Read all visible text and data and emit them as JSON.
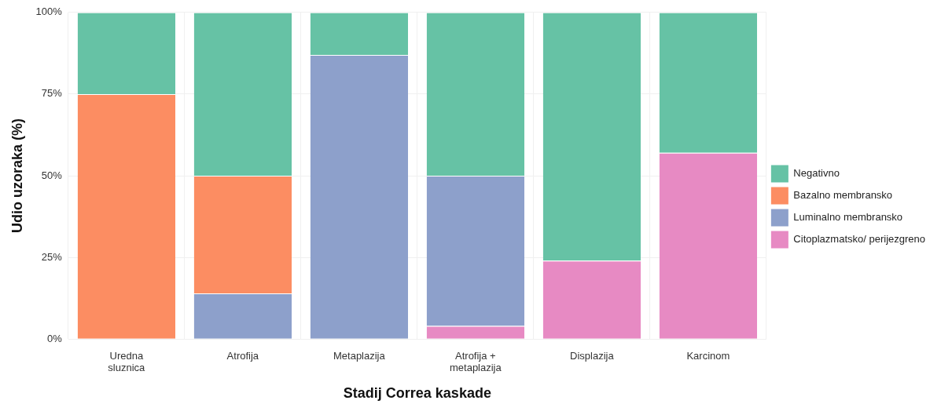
{
  "chart_data": {
    "type": "bar",
    "stacked": true,
    "xlabel": "Stadij Correa kaskade",
    "ylabel": "Udio uzoraka (%)",
    "categories": [
      "Uredna sluznica",
      "Atrofija",
      "Metaplazija",
      "Atrofija + metaplazija",
      "Displazija",
      "Karcinom"
    ],
    "series": [
      {
        "name": "Citoplazmatsko/ perijezgreno",
        "color": "#e78ac3",
        "values": [
          0,
          0,
          0,
          4,
          24,
          57
        ]
      },
      {
        "name": "Luminalno membransko",
        "color": "#8da0cb",
        "values": [
          0,
          14,
          87,
          46,
          0,
          0
        ]
      },
      {
        "name": "Bazalno membransko",
        "color": "#fc8d62",
        "values": [
          75,
          36,
          0,
          0,
          0,
          0
        ]
      },
      {
        "name": "Negativno",
        "color": "#66c2a5",
        "values": [
          25,
          50,
          13,
          50,
          76,
          43
        ]
      }
    ],
    "ylim": [
      0,
      100
    ],
    "yticks": [
      {
        "value": 0,
        "label": "0%"
      },
      {
        "value": 25,
        "label": "25%"
      },
      {
        "value": 50,
        "label": "50%"
      },
      {
        "value": 75,
        "label": "75%"
      },
      {
        "value": 100,
        "label": "100%"
      }
    ],
    "grid": true,
    "legend": "right"
  }
}
